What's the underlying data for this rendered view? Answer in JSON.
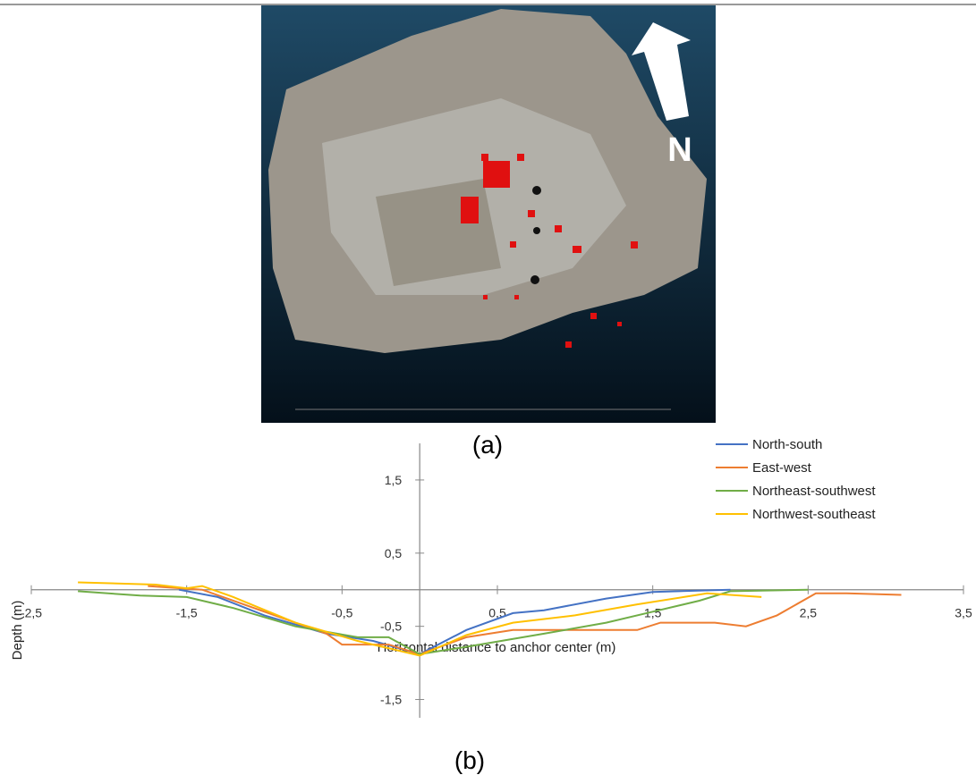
{
  "figure": {
    "caption_a": "(a)",
    "caption_b": "(b)",
    "north_label": "N"
  },
  "chart_data": {
    "type": "line",
    "x_label": "Horizontal distance to anchor center (m)",
    "y_label": "Depth (m)",
    "xlim": [
      -2.5,
      3.5
    ],
    "ylim": [
      -1.75,
      2
    ],
    "xticks": [
      {
        "value": -2.5,
        "label": "-2,5"
      },
      {
        "value": -1.5,
        "label": "-1,5"
      },
      {
        "value": -0.5,
        "label": "-0,5"
      },
      {
        "value": 0.5,
        "label": "0,5"
      },
      {
        "value": 1.5,
        "label": "1,5"
      },
      {
        "value": 2.5,
        "label": "2,5"
      },
      {
        "value": 3.5,
        "label": "3,5"
      }
    ],
    "yticks": [
      {
        "value": 1.5,
        "label": "1,5"
      },
      {
        "value": 0.5,
        "label": "0,5"
      },
      {
        "value": -0.5,
        "label": "-0,5"
      },
      {
        "value": -1.5,
        "label": "-1,5"
      }
    ],
    "legend": "top-right",
    "series": [
      {
        "name": "North-south",
        "color": "#4472c4",
        "x": [
          -1.55,
          -1.3,
          -1.0,
          -0.6,
          -0.3,
          0,
          0.3,
          0.6,
          0.8,
          1.2,
          1.5,
          2.0
        ],
        "values": [
          0,
          -0.1,
          -0.35,
          -0.6,
          -0.7,
          -0.88,
          -0.55,
          -0.32,
          -0.28,
          -0.12,
          -0.03,
          0
        ]
      },
      {
        "name": "East-west",
        "color": "#ed7d31",
        "x": [
          -1.75,
          -1.4,
          -1.0,
          -0.6,
          -0.5,
          -0.2,
          0,
          0.3,
          0.6,
          1.0,
          1.4,
          1.55,
          1.9,
          2.1,
          2.3,
          2.55,
          2.75,
          3.1
        ],
        "values": [
          0.05,
          0,
          -0.3,
          -0.6,
          -0.75,
          -0.75,
          -0.88,
          -0.65,
          -0.55,
          -0.55,
          -0.55,
          -0.45,
          -0.45,
          -0.5,
          -0.35,
          -0.05,
          -0.05,
          -0.07
        ]
      },
      {
        "name": "Northeast-southwest",
        "color": "#70ad47",
        "x": [
          -2.2,
          -1.8,
          -1.5,
          -1.2,
          -0.8,
          -0.4,
          -0.2,
          0,
          0.3,
          0.8,
          1.2,
          1.5,
          1.8,
          2.0,
          2.5
        ],
        "values": [
          -0.02,
          -0.08,
          -0.1,
          -0.25,
          -0.5,
          -0.65,
          -0.65,
          -0.88,
          -0.78,
          -0.6,
          -0.45,
          -0.3,
          -0.15,
          -0.02,
          0
        ]
      },
      {
        "name": "Northwest-southeast",
        "color": "#ffc000",
        "x": [
          -2.2,
          -1.7,
          -1.5,
          -1.4,
          -1.2,
          -0.8,
          -0.4,
          0,
          0.3,
          0.6,
          1.0,
          1.4,
          1.7,
          1.85,
          2.2
        ],
        "values": [
          0.1,
          0.07,
          0.02,
          0.05,
          -0.1,
          -0.45,
          -0.7,
          -0.9,
          -0.62,
          -0.45,
          -0.35,
          -0.2,
          -0.1,
          -0.05,
          -0.1
        ]
      }
    ]
  }
}
